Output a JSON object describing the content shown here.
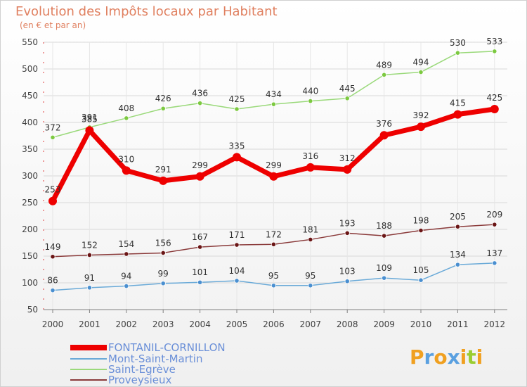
{
  "chart_data": {
    "type": "line",
    "title": "Evolution des Impôts locaux par Habitant",
    "subtitle": "(en € et par an)",
    "xlabel": "",
    "ylabel": "",
    "ylim": [
      50,
      550
    ],
    "yticks": [
      50,
      100,
      150,
      200,
      250,
      300,
      350,
      400,
      450,
      500,
      550
    ],
    "categories": [
      "2000",
      "2001",
      "2002",
      "2003",
      "2004",
      "2005",
      "2006",
      "2007",
      "2008",
      "2009",
      "2010",
      "2011",
      "2012"
    ],
    "grid": true,
    "legend_position": "bottom-left",
    "series": [
      {
        "name": "Saint-Egrève",
        "color": "#9ad97a",
        "marker_color": "#7cc940",
        "values": [
          372,
          391,
          408,
          426,
          436,
          425,
          434,
          440,
          445,
          489,
          494,
          530,
          533
        ],
        "labels": [
          "372",
          "391",
          "408",
          "426",
          "436",
          "425",
          "434",
          "440",
          "445",
          "489",
          "494",
          "530",
          "533"
        ]
      },
      {
        "name": "Proveysieux",
        "color": "#8a3a3a",
        "marker_color": "#6a1515",
        "values": [
          149,
          152,
          154,
          156,
          167,
          171,
          172,
          181,
          193,
          188,
          198,
          205,
          209
        ],
        "labels": [
          "149",
          "152",
          "154",
          "156",
          "167",
          "171",
          "172",
          "181",
          "193",
          "188",
          "198",
          "205",
          "209"
        ]
      },
      {
        "name": "Mont-Saint-Martin",
        "color": "#6aaad8",
        "marker_color": "#4a8fd0",
        "values": [
          86,
          91,
          94,
          99,
          101,
          104,
          95,
          95,
          103,
          109,
          105,
          134,
          137
        ],
        "labels": [
          "86",
          "91",
          "94",
          "99",
          "101",
          "104",
          "95",
          "95",
          "103",
          "109",
          "105",
          "134",
          "137"
        ]
      },
      {
        "name": "FONTANIL-CORNILLON",
        "color": "#ee0000",
        "marker_color": "#ee0000",
        "values": [
          253,
          385,
          310,
          291,
          299,
          335,
          299,
          316,
          312,
          376,
          392,
          415,
          425
        ],
        "labels": [
          "253",
          "385",
          "310",
          "291",
          "299",
          "335",
          "299",
          "316",
          "312",
          "376",
          "392",
          "415",
          "425"
        ]
      }
    ],
    "legend": [
      {
        "name": "FONTANIL-CORNILLON",
        "color": "#ee0000",
        "text_color": "#6a8fd8"
      },
      {
        "name": "Mont-Saint-Martin",
        "color": "#6aaad8",
        "text_color": "#6a8fd8"
      },
      {
        "name": "Saint-Egrève",
        "color": "#9ad97a",
        "text_color": "#6a8fd8"
      },
      {
        "name": "Proveysieux",
        "color": "#8a3a3a",
        "text_color": "#6a8fd8"
      }
    ]
  },
  "logo": {
    "letters": [
      "P",
      "r",
      "o",
      "x",
      "i",
      "t",
      "i"
    ],
    "colors": [
      "#f0a020",
      "#5aa0e0",
      "#f0a020",
      "#5aa0e0",
      "#f0a020",
      "#9acd32",
      "#f0a020"
    ]
  }
}
